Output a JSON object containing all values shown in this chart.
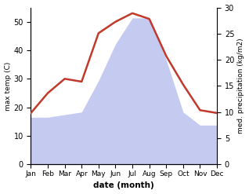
{
  "months": [
    "Jan",
    "Feb",
    "Mar",
    "Apr",
    "May",
    "Jun",
    "Jul",
    "Aug",
    "Sep",
    "Oct",
    "Nov",
    "Dec"
  ],
  "temperature": [
    18,
    25,
    30,
    29,
    46,
    50,
    53,
    51,
    38,
    28,
    19,
    18
  ],
  "precipitation": [
    9,
    9,
    9.5,
    10,
    16,
    23,
    28,
    28,
    20,
    10,
    7.5,
    7.5
  ],
  "temp_color": "#c0392b",
  "precip_fill_color": "#c5caf0",
  "temp_ylim": [
    0,
    55
  ],
  "precip_ylim": [
    0,
    30
  ],
  "temp_yticks": [
    0,
    10,
    20,
    30,
    40,
    50
  ],
  "precip_yticks": [
    0,
    5,
    10,
    15,
    20,
    25,
    30
  ],
  "ylabel_left": "max temp (C)",
  "ylabel_right": "med. precipitation (kg/m2)",
  "xlabel": "date (month)",
  "figsize": [
    3.18,
    2.47
  ],
  "dpi": 100
}
